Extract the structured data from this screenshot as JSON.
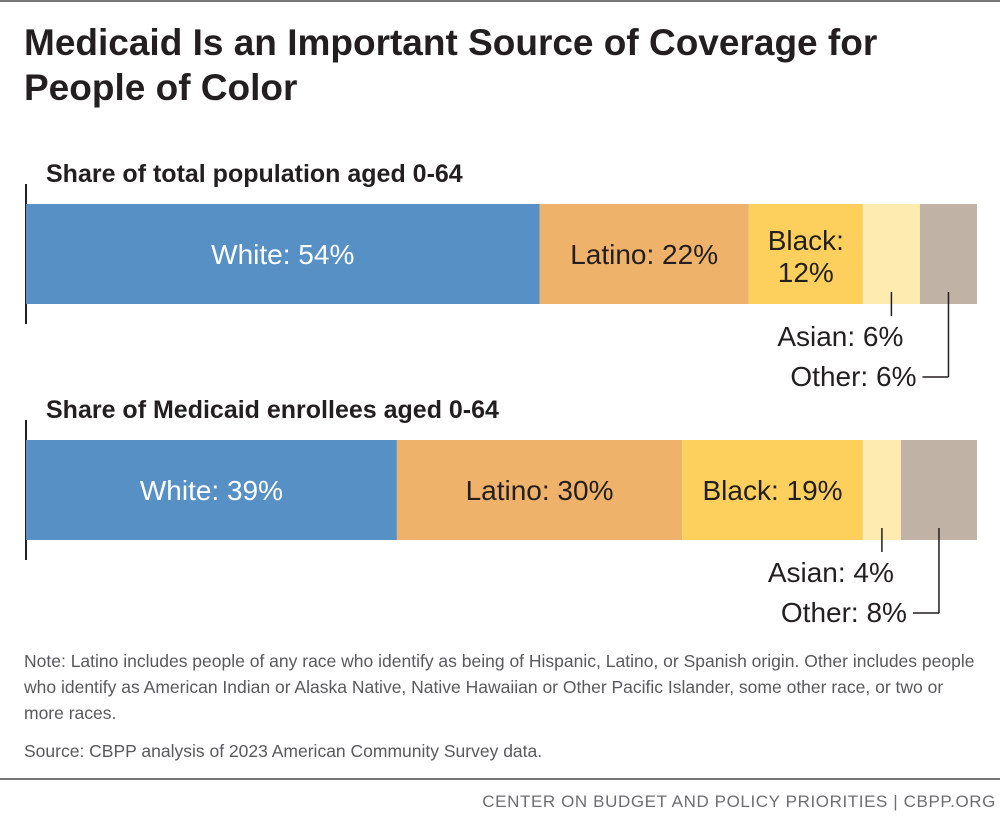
{
  "title": "Medicaid Is an Important Source of Coverage for People of Color",
  "chart_data": {
    "type": "bar",
    "orientation": "horizontal-stacked-100",
    "title": "Medicaid Is an Important Source of Coverage for People of Color",
    "categories": [
      "Share of total population aged 0-64",
      "Share of Medicaid enrollees aged 0-64"
    ],
    "series": [
      {
        "name": "White",
        "values": [
          54,
          39
        ],
        "color": "#5690c5",
        "text_color": "#ffffff"
      },
      {
        "name": "Latino",
        "values": [
          22,
          30
        ],
        "color": "#efb26a",
        "text_color": "#231f20"
      },
      {
        "name": "Black",
        "values": [
          12,
          19
        ],
        "color": "#fdd05e",
        "text_color": "#231f20"
      },
      {
        "name": "Asian",
        "values": [
          6,
          4
        ],
        "color": "#feebaf",
        "text_color": "#231f20"
      },
      {
        "name": "Other",
        "values": [
          6,
          8
        ],
        "color": "#c0b3a5",
        "text_color": "#231f20"
      }
    ],
    "xlim": [
      0,
      100
    ],
    "unit": "%",
    "xlabel": "",
    "ylabel": "",
    "legend": "none (direct labels)"
  },
  "labels": {
    "population": [
      "White: 54%",
      "Latino: 22%",
      "Black: 12%",
      "Asian: 6%",
      "Other: 6%"
    ],
    "medicaid": [
      "White: 39%",
      "Latino: 30%",
      "Black: 19%",
      "Asian: 4%",
      "Other: 8%"
    ]
  },
  "note": "Note: Latino includes people of any race who identify as being of Hispanic, Latino, or Spanish origin. Other includes people who identify as American Indian or Alaska Native, Native Hawaiian or Other Pacific Islander, some other race, or two or more races.",
  "source": "Source: CBPP analysis of 2023 American Community Survey data.",
  "footer": "CENTER ON BUDGET AND POLICY PRIORITIES | CBPP.ORG"
}
